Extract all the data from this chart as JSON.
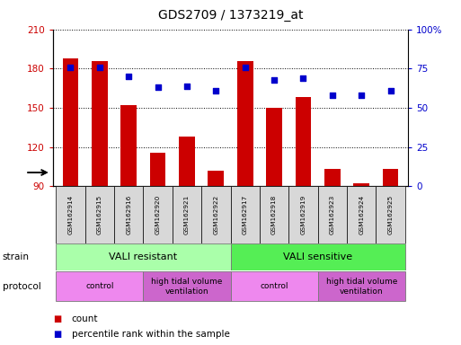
{
  "title": "GDS2709 / 1373219_at",
  "samples": [
    "GSM162914",
    "GSM162915",
    "GSM162916",
    "GSM162920",
    "GSM162921",
    "GSM162922",
    "GSM162917",
    "GSM162918",
    "GSM162919",
    "GSM162923",
    "GSM162924",
    "GSM162925"
  ],
  "bar_values": [
    188,
    186,
    152,
    116,
    128,
    102,
    186,
    150,
    158,
    103,
    92,
    103
  ],
  "dot_values": [
    76,
    76,
    70,
    63,
    64,
    61,
    76,
    68,
    69,
    58,
    58,
    61
  ],
  "ylim_left": [
    90,
    210
  ],
  "ylim_right": [
    0,
    100
  ],
  "yticks_left": [
    90,
    120,
    150,
    180,
    210
  ],
  "yticks_right": [
    0,
    25,
    50,
    75,
    100
  ],
  "bar_color": "#cc0000",
  "dot_color": "#0000cc",
  "strain_data": [
    {
      "text": "VALI resistant",
      "start": 0,
      "end": 6,
      "color": "#aaffaa"
    },
    {
      "text": "VALI sensitive",
      "start": 6,
      "end": 12,
      "color": "#55ee55"
    }
  ],
  "protocol_data": [
    {
      "text": "control",
      "start": 0,
      "end": 3,
      "color": "#ee88ee"
    },
    {
      "text": "high tidal volume\nventilation",
      "start": 3,
      "end": 6,
      "color": "#cc66cc"
    },
    {
      "text": "control",
      "start": 6,
      "end": 9,
      "color": "#ee88ee"
    },
    {
      "text": "high tidal volume\nventilation",
      "start": 9,
      "end": 12,
      "color": "#cc66cc"
    }
  ],
  "tick_color_left": "#cc0000",
  "tick_color_right": "#0000cc",
  "grid_color": "black",
  "sample_box_color": "#d8d8d8",
  "legend_count_color": "#cc0000",
  "legend_dot_color": "#0000cc"
}
